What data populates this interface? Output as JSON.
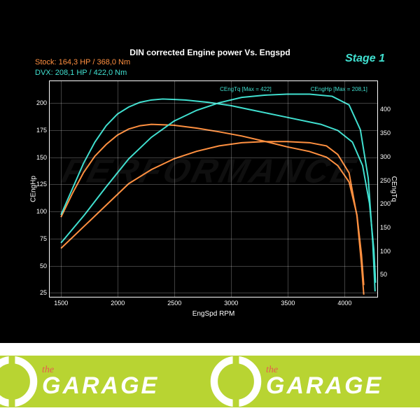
{
  "chart": {
    "title": "DIN corrected Engine power Vs. Engspd",
    "stage_label": "Stage 1",
    "background_color": "#000000",
    "watermark_text": "PERFORMANCE",
    "legend": {
      "stock": {
        "label": "Stock:",
        "value": "164,3 HP / 368,0 Nm",
        "color": "#ff9040"
      },
      "dvx": {
        "label": "DVX:",
        "value": "208,1 HP / 422,0 Nm",
        "color": "#40e0d0"
      }
    },
    "x": {
      "label": "EngSpd RPM",
      "min": 1400,
      "max": 4300,
      "ticks": [
        1500,
        2000,
        2500,
        3000,
        3500,
        4000
      ]
    },
    "y_left": {
      "label": "CEngHp",
      "min": 20,
      "max": 220,
      "ticks": [
        25,
        50,
        75,
        100,
        125,
        150,
        175,
        200
      ]
    },
    "y_right": {
      "label": "CEngTq",
      "min": 0,
      "max": 460,
      "ticks": [
        50,
        100,
        150,
        200,
        250,
        300,
        350,
        400
      ]
    },
    "grid_color": "rgba(255,255,255,0.25)",
    "annotations": [
      {
        "text": "CEngTq [Max = 422]",
        "x_rpm": 2900,
        "y_hp": 208
      },
      {
        "text": "CEngHp [Max = 208,1]",
        "x_rpm": 3700,
        "y_hp": 208
      }
    ],
    "series": [
      {
        "name": "stock_hp",
        "axis": "left",
        "color": "#ff9040",
        "width": 2,
        "points": [
          [
            1500,
            65
          ],
          [
            1700,
            85
          ],
          [
            1900,
            105
          ],
          [
            2100,
            125
          ],
          [
            2300,
            138
          ],
          [
            2500,
            148
          ],
          [
            2700,
            155
          ],
          [
            2900,
            160
          ],
          [
            3100,
            163
          ],
          [
            3300,
            164
          ],
          [
            3500,
            164
          ],
          [
            3700,
            163
          ],
          [
            3850,
            160
          ],
          [
            3950,
            152
          ],
          [
            4050,
            135
          ],
          [
            4120,
            95
          ],
          [
            4160,
            50
          ],
          [
            4180,
            22
          ]
        ]
      },
      {
        "name": "stock_tq",
        "axis": "right",
        "color": "#ff9040",
        "width": 2,
        "points": [
          [
            1500,
            170
          ],
          [
            1600,
            220
          ],
          [
            1700,
            265
          ],
          [
            1800,
            300
          ],
          [
            1900,
            325
          ],
          [
            2000,
            345
          ],
          [
            2100,
            358
          ],
          [
            2200,
            365
          ],
          [
            2300,
            368
          ],
          [
            2500,
            366
          ],
          [
            2700,
            360
          ],
          [
            2900,
            352
          ],
          [
            3100,
            343
          ],
          [
            3300,
            332
          ],
          [
            3500,
            320
          ],
          [
            3700,
            310
          ],
          [
            3850,
            298
          ],
          [
            3950,
            280
          ],
          [
            4050,
            245
          ],
          [
            4120,
            175
          ],
          [
            4160,
            90
          ],
          [
            4180,
            25
          ]
        ]
      },
      {
        "name": "dvx_hp",
        "axis": "left",
        "color": "#40e0d0",
        "width": 2,
        "points": [
          [
            1500,
            70
          ],
          [
            1700,
            95
          ],
          [
            1900,
            122
          ],
          [
            2100,
            148
          ],
          [
            2300,
            168
          ],
          [
            2500,
            183
          ],
          [
            2700,
            193
          ],
          [
            2900,
            200
          ],
          [
            3100,
            205
          ],
          [
            3300,
            207
          ],
          [
            3500,
            208
          ],
          [
            3700,
            208
          ],
          [
            3900,
            206
          ],
          [
            4050,
            198
          ],
          [
            4150,
            175
          ],
          [
            4220,
            130
          ],
          [
            4260,
            70
          ],
          [
            4280,
            25
          ]
        ]
      },
      {
        "name": "dvx_tq",
        "axis": "right",
        "color": "#40e0d0",
        "width": 2,
        "points": [
          [
            1500,
            175
          ],
          [
            1600,
            230
          ],
          [
            1700,
            285
          ],
          [
            1800,
            330
          ],
          [
            1900,
            365
          ],
          [
            2000,
            390
          ],
          [
            2100,
            405
          ],
          [
            2200,
            415
          ],
          [
            2300,
            420
          ],
          [
            2400,
            422
          ],
          [
            2600,
            420
          ],
          [
            2800,
            415
          ],
          [
            3000,
            408
          ],
          [
            3200,
            398
          ],
          [
            3400,
            388
          ],
          [
            3600,
            378
          ],
          [
            3800,
            368
          ],
          [
            3950,
            355
          ],
          [
            4080,
            330
          ],
          [
            4170,
            280
          ],
          [
            4230,
            200
          ],
          [
            4270,
            100
          ],
          [
            4285,
            30
          ]
        ]
      }
    ]
  },
  "logo": {
    "the": "the",
    "garage": "GARAGE",
    "bg_color": "#b8d432",
    "wrench_color": "#ffffff",
    "accent_color": "#e85a4f"
  }
}
